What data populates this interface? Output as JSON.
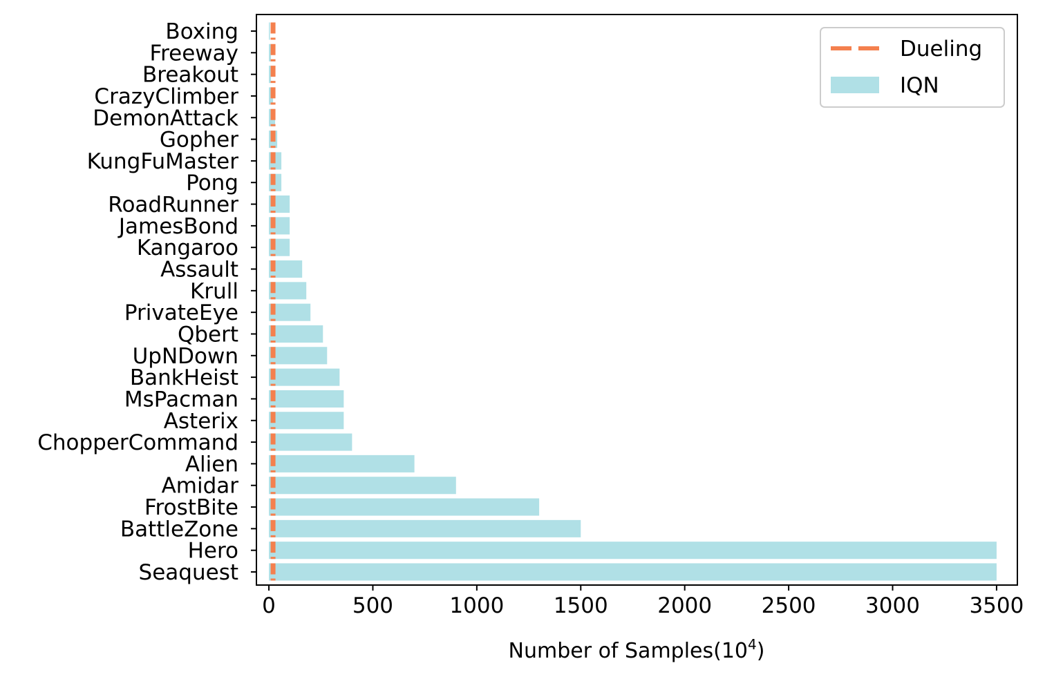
{
  "chart_data": {
    "type": "bar",
    "orientation": "horizontal",
    "title": "",
    "xlabel": "Number of Samples(10",
    "xlabel_superscript": "4",
    "xlabel_suffix": ")",
    "ylabel": "",
    "xlim": [
      -60,
      3600
    ],
    "xticks": [
      0,
      500,
      1000,
      1500,
      2000,
      2500,
      3000,
      3500
    ],
    "grid": false,
    "legend_position": "top-right",
    "categories": [
      "Boxing",
      "Freeway",
      "Breakout",
      "CrazyClimber",
      "DemonAttack",
      "Gopher",
      "KungFuMaster",
      "Pong",
      "RoadRunner",
      "JamesBond",
      "Kangaroo",
      "Assault",
      "Krull",
      "PrivateEye",
      "Qbert",
      "UpNDown",
      "BankHeist",
      "MsPacman",
      "Asterix",
      "ChopperCommand",
      "Alien",
      "Amidar",
      "FrostBite",
      "BattleZone",
      "Hero",
      "Seaquest"
    ],
    "series": [
      {
        "name": "Dueling",
        "style": "dashed-line",
        "color": "#F4804E",
        "values": [
          20,
          20,
          20,
          20,
          20,
          20,
          20,
          20,
          20,
          20,
          20,
          20,
          20,
          20,
          20,
          20,
          20,
          20,
          20,
          20,
          20,
          20,
          20,
          20,
          20,
          20
        ]
      },
      {
        "name": "IQN",
        "style": "bar",
        "color": "#B0E0E6",
        "values": [
          5,
          10,
          10,
          20,
          30,
          40,
          60,
          60,
          100,
          100,
          100,
          160,
          180,
          200,
          260,
          280,
          340,
          360,
          360,
          400,
          700,
          900,
          1300,
          1500,
          3500,
          3500
        ]
      }
    ]
  }
}
